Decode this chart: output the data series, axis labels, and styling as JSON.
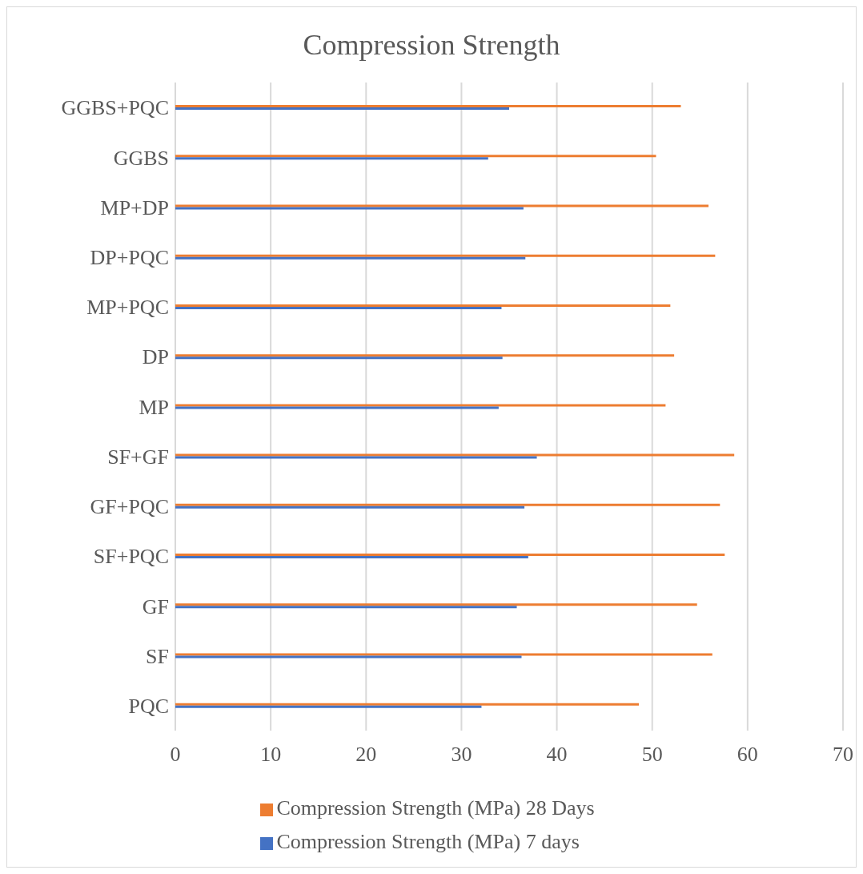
{
  "chart_data": {
    "type": "bar",
    "orientation": "horizontal",
    "title": "Compression Strength",
    "categories": [
      "GGBS+PQC",
      "GGBS",
      "MP+DP",
      "DP+PQC",
      "MP+PQC",
      "DP",
      "MP",
      "SF+GF",
      "GF+PQC",
      "SF+PQC",
      "GF",
      "SF",
      "PQC"
    ],
    "series": [
      {
        "name": "Compression Strength (MPa) 28 Days",
        "color": "#ed7d31",
        "values": [
          53.0,
          50.4,
          55.9,
          56.6,
          51.9,
          52.3,
          51.4,
          58.6,
          57.1,
          57.6,
          54.7,
          56.3,
          48.6
        ]
      },
      {
        "name": "Compression Strength (MPa) 7 days",
        "color": "#4472c4",
        "values": [
          35.0,
          32.8,
          36.5,
          36.7,
          34.2,
          34.3,
          33.9,
          37.9,
          36.6,
          37.0,
          35.8,
          36.3,
          32.1
        ]
      }
    ],
    "xlim": [
      0,
      70
    ],
    "xticks": [
      0,
      10,
      20,
      30,
      40,
      50,
      60,
      70
    ],
    "grid": "x",
    "legend": "bottom"
  }
}
